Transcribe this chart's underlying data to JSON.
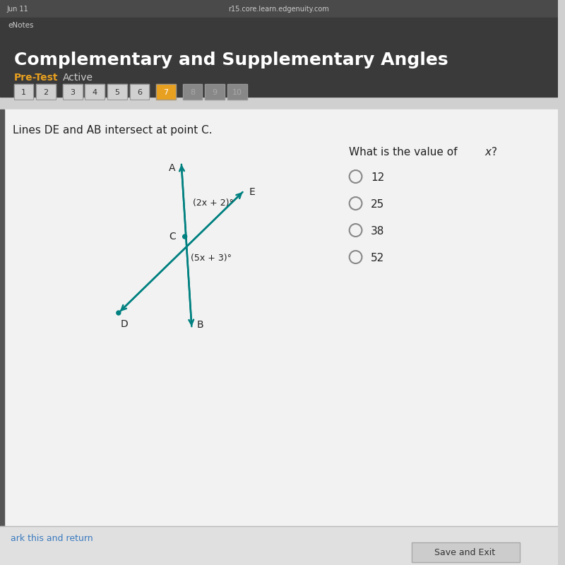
{
  "title": "Complementary and Supplementary Angles",
  "subtitle_label": "Pre-Test",
  "subtitle_active": "Active",
  "question_text": "Lines DE and AB intersect at point C.",
  "answer_choices": [
    "12",
    "25",
    "38",
    "52"
  ],
  "bg_color_top": "#3a3a3a",
  "title_color": "#ffffff",
  "pretest_color": "#e8a020",
  "active_button": "7",
  "active_button_color": "#e8a020",
  "line_color": "#008080",
  "angle_label_1": "(2x + 2)°",
  "angle_label_2": "(5x + 3)°",
  "footer_link": "ark this and return",
  "save_button": "Save and Exit",
  "browser_tab_text": "Jun 11",
  "browser_url": "r15.core.learn.edgenuity.com",
  "browser_label": "eNotes"
}
